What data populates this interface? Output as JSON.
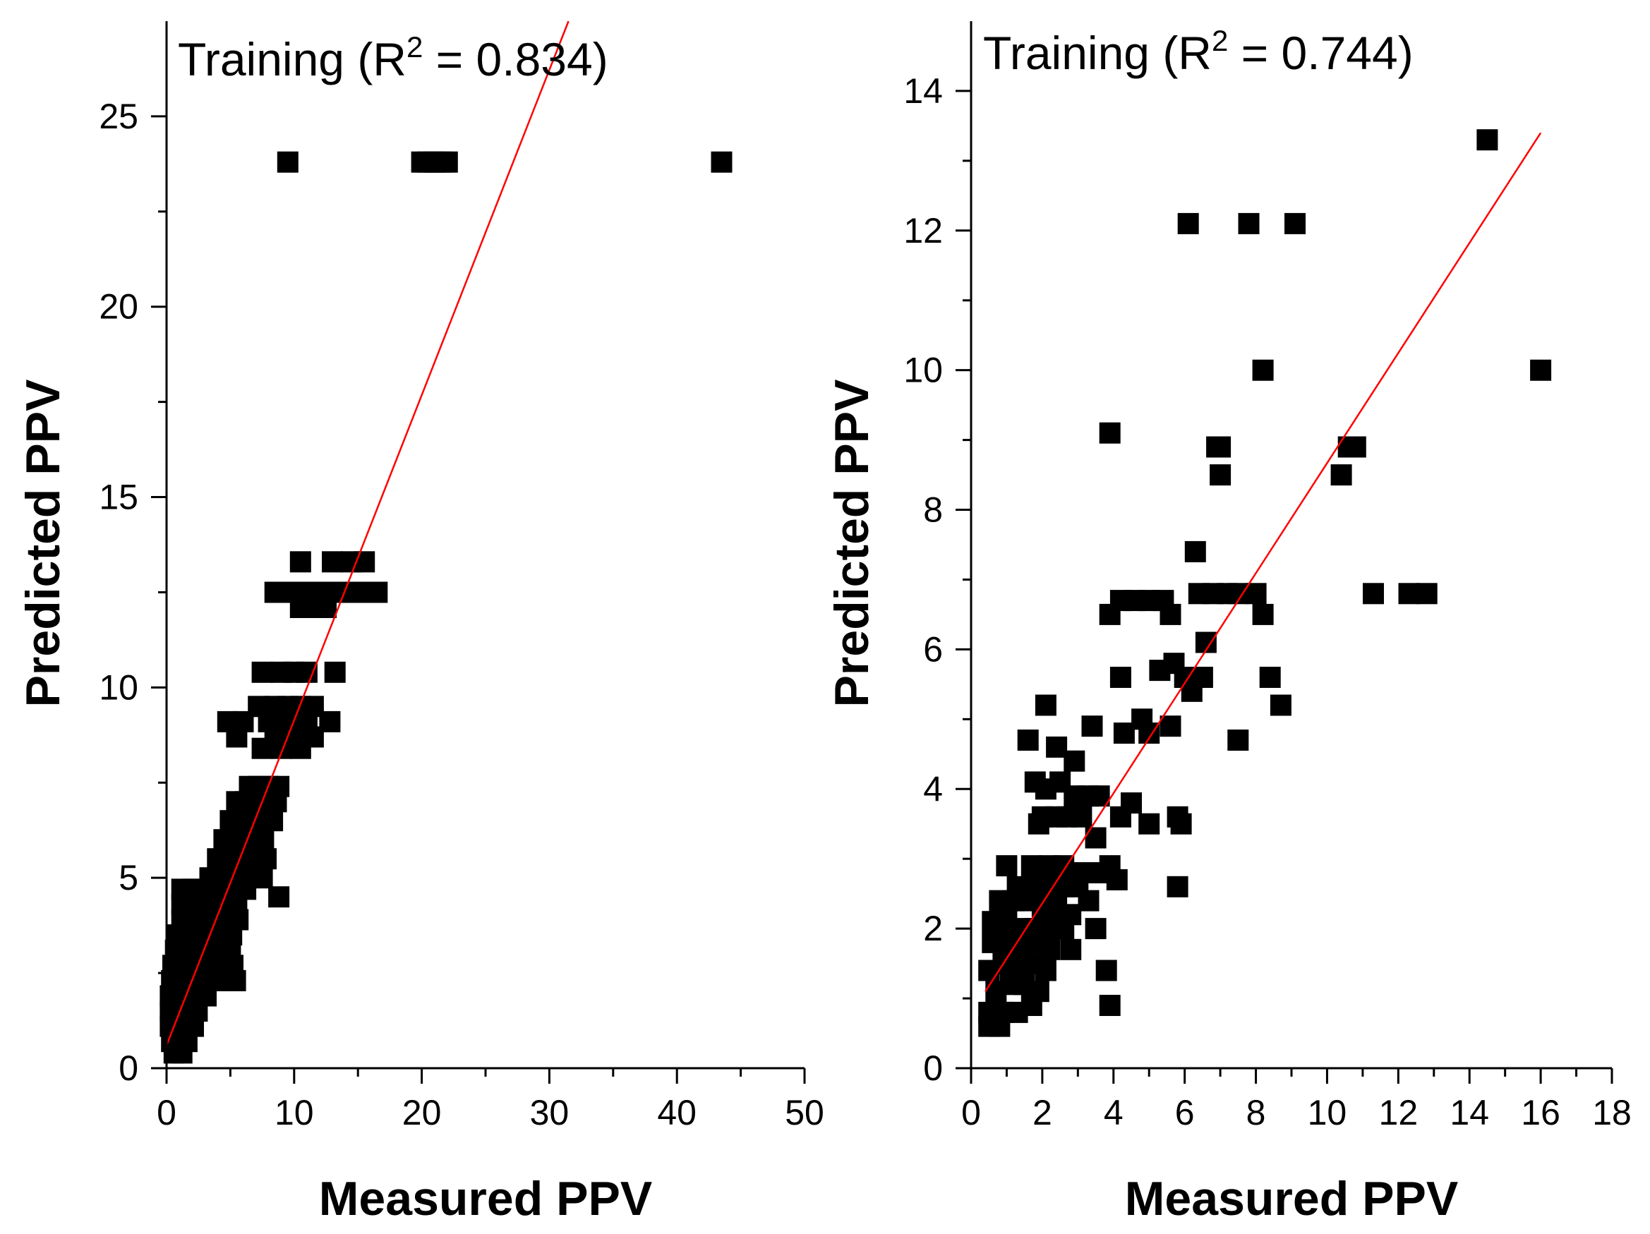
{
  "chart_data": [
    {
      "id": "left",
      "type": "scatter",
      "title": "",
      "annotation": {
        "prefix": "Training (R",
        "sup": "2",
        "suffix": " = 0.834)"
      },
      "xlabel": "Measured PPV",
      "ylabel": "Predicted PPV",
      "xlim": [
        0,
        50
      ],
      "ylim": [
        0,
        27.5
      ],
      "xticks": [
        0,
        10,
        20,
        30,
        40,
        50
      ],
      "yticks": [
        0,
        5,
        10,
        15,
        20,
        25
      ],
      "xminor": [
        5,
        15,
        25,
        35,
        45
      ],
      "yminor": [
        2.5,
        7.5,
        12.5,
        17.5,
        22.5
      ],
      "fit_line": {
        "x": [
          0,
          31.5
        ],
        "y": [
          0.6,
          27.5
        ]
      },
      "marker_color": "#000000",
      "line_color": "#ff0000",
      "points": [
        [
          9.5,
          23.8
        ],
        [
          20.0,
          23.8
        ],
        [
          20.5,
          23.8
        ],
        [
          21.0,
          23.8
        ],
        [
          21.5,
          23.8
        ],
        [
          22.0,
          23.8
        ],
        [
          43.5,
          23.8
        ],
        [
          10.5,
          13.3
        ],
        [
          13.0,
          13.3
        ],
        [
          14.5,
          13.3
        ],
        [
          15.5,
          13.3
        ],
        [
          8.5,
          12.5
        ],
        [
          9.5,
          12.5
        ],
        [
          10.5,
          12.5
        ],
        [
          11.5,
          12.5
        ],
        [
          12.5,
          12.5
        ],
        [
          13.5,
          12.5
        ],
        [
          14.5,
          12.5
        ],
        [
          15.5,
          12.5
        ],
        [
          16.5,
          12.5
        ],
        [
          10.5,
          12.1
        ],
        [
          11.5,
          12.1
        ],
        [
          12.5,
          12.1
        ],
        [
          7.5,
          10.4
        ],
        [
          9.0,
          10.4
        ],
        [
          10.0,
          10.4
        ],
        [
          11.0,
          10.4
        ],
        [
          13.2,
          10.4
        ],
        [
          7.2,
          9.5
        ],
        [
          8.5,
          9.5
        ],
        [
          9.5,
          9.5
        ],
        [
          10.5,
          9.5
        ],
        [
          11.5,
          9.5
        ],
        [
          4.8,
          9.1
        ],
        [
          6.0,
          9.1
        ],
        [
          8.0,
          9.1
        ],
        [
          9.5,
          9.1
        ],
        [
          11.0,
          9.1
        ],
        [
          12.8,
          9.1
        ],
        [
          5.5,
          8.7
        ],
        [
          8.5,
          8.7
        ],
        [
          10.0,
          8.7
        ],
        [
          11.5,
          8.7
        ],
        [
          7.5,
          8.4
        ],
        [
          9.0,
          8.4
        ],
        [
          10.5,
          8.4
        ],
        [
          6.5,
          7.4
        ],
        [
          7.2,
          7.4
        ],
        [
          8.0,
          7.4
        ],
        [
          8.8,
          7.4
        ],
        [
          5.5,
          7.0
        ],
        [
          6.2,
          7.0
        ],
        [
          7.0,
          7.0
        ],
        [
          7.8,
          7.0
        ],
        [
          8.6,
          7.0
        ],
        [
          5.0,
          6.5
        ],
        [
          5.7,
          6.5
        ],
        [
          6.4,
          6.5
        ],
        [
          7.1,
          6.5
        ],
        [
          8.3,
          6.5
        ],
        [
          4.5,
          6.0
        ],
        [
          5.2,
          6.0
        ],
        [
          5.9,
          6.0
        ],
        [
          6.6,
          6.0
        ],
        [
          7.6,
          6.0
        ],
        [
          4.0,
          5.5
        ],
        [
          4.7,
          5.5
        ],
        [
          5.4,
          5.5
        ],
        [
          6.1,
          5.5
        ],
        [
          6.8,
          5.5
        ],
        [
          7.8,
          5.5
        ],
        [
          3.4,
          5.0
        ],
        [
          4.1,
          5.0
        ],
        [
          4.8,
          5.0
        ],
        [
          5.5,
          5.0
        ],
        [
          6.2,
          5.0
        ],
        [
          7.5,
          5.0
        ],
        [
          1.2,
          4.7
        ],
        [
          2.0,
          4.7
        ],
        [
          2.8,
          4.7
        ],
        [
          3.6,
          4.7
        ],
        [
          4.4,
          4.7
        ],
        [
          5.2,
          4.7
        ],
        [
          6.2,
          4.7
        ],
        [
          1.2,
          4.3
        ],
        [
          1.9,
          4.3
        ],
        [
          2.6,
          4.3
        ],
        [
          3.3,
          4.3
        ],
        [
          4.0,
          4.3
        ],
        [
          4.7,
          4.3
        ],
        [
          5.5,
          4.3
        ],
        [
          8.8,
          4.5
        ],
        [
          1.2,
          3.9
        ],
        [
          1.9,
          3.9
        ],
        [
          2.6,
          3.9
        ],
        [
          3.3,
          3.9
        ],
        [
          4.0,
          3.9
        ],
        [
          4.7,
          3.9
        ],
        [
          5.6,
          3.9
        ],
        [
          0.9,
          3.5
        ],
        [
          1.6,
          3.5
        ],
        [
          2.3,
          3.5
        ],
        [
          3.0,
          3.5
        ],
        [
          3.7,
          3.5
        ],
        [
          4.4,
          3.5
        ],
        [
          5.1,
          3.5
        ],
        [
          0.7,
          3.1
        ],
        [
          1.4,
          3.1
        ],
        [
          2.1,
          3.1
        ],
        [
          2.8,
          3.1
        ],
        [
          3.5,
          3.1
        ],
        [
          4.2,
          3.1
        ],
        [
          5.0,
          3.1
        ],
        [
          0.5,
          2.7
        ],
        [
          1.2,
          2.7
        ],
        [
          1.9,
          2.7
        ],
        [
          2.6,
          2.7
        ],
        [
          3.3,
          2.7
        ],
        [
          4.0,
          2.7
        ],
        [
          5.2,
          2.7
        ],
        [
          0.4,
          2.3
        ],
        [
          1.1,
          2.3
        ],
        [
          1.8,
          2.3
        ],
        [
          2.5,
          2.3
        ],
        [
          3.2,
          2.3
        ],
        [
          3.9,
          2.3
        ],
        [
          5.4,
          2.3
        ],
        [
          0.3,
          1.9
        ],
        [
          1.0,
          1.9
        ],
        [
          1.7,
          1.9
        ],
        [
          2.4,
          1.9
        ],
        [
          3.1,
          1.9
        ],
        [
          0.3,
          1.5
        ],
        [
          1.0,
          1.5
        ],
        [
          1.7,
          1.5
        ],
        [
          2.4,
          1.5
        ],
        [
          0.3,
          1.1
        ],
        [
          0.9,
          1.1
        ],
        [
          1.5,
          1.1
        ],
        [
          2.1,
          1.1
        ],
        [
          0.4,
          0.7
        ],
        [
          1.0,
          0.7
        ],
        [
          1.6,
          0.7
        ],
        [
          0.6,
          0.4
        ],
        [
          1.2,
          0.4
        ]
      ]
    },
    {
      "id": "right",
      "type": "scatter",
      "title": "",
      "annotation": {
        "prefix": "Training (R",
        "sup": "2",
        "suffix": " = 0.744)"
      },
      "xlabel": "Measured PPV",
      "ylabel": "Predicted PPV",
      "xlim": [
        0,
        18
      ],
      "ylim": [
        0,
        15
      ],
      "xticks": [
        0,
        2,
        4,
        6,
        8,
        10,
        12,
        14,
        16,
        18
      ],
      "yticks": [
        0,
        2,
        4,
        6,
        8,
        10,
        12,
        14
      ],
      "xminor": [
        1,
        3,
        5,
        7,
        9,
        11,
        13,
        15,
        17
      ],
      "yminor": [
        1,
        3,
        5,
        7,
        9,
        11,
        13
      ],
      "fit_line": {
        "x": [
          0.4,
          16.0
        ],
        "y": [
          1.1,
          13.4
        ]
      },
      "marker_color": "#000000",
      "line_color": "#ff0000",
      "points": [
        [
          14.5,
          13.3
        ],
        [
          6.1,
          12.1
        ],
        [
          7.8,
          12.1
        ],
        [
          9.1,
          12.1
        ],
        [
          8.2,
          10.0
        ],
        [
          16.0,
          10.0
        ],
        [
          3.9,
          9.1
        ],
        [
          6.9,
          8.9
        ],
        [
          7.0,
          8.9
        ],
        [
          10.6,
          8.9
        ],
        [
          10.8,
          8.9
        ],
        [
          7.0,
          8.5
        ],
        [
          10.4,
          8.5
        ],
        [
          6.3,
          7.4
        ],
        [
          11.3,
          6.8
        ],
        [
          12.3,
          6.8
        ],
        [
          12.8,
          6.8
        ],
        [
          4.2,
          6.7
        ],
        [
          4.6,
          6.7
        ],
        [
          5.0,
          6.7
        ],
        [
          5.4,
          6.7
        ],
        [
          6.4,
          6.8
        ],
        [
          6.8,
          6.8
        ],
        [
          7.2,
          6.8
        ],
        [
          7.5,
          6.8
        ],
        [
          8.0,
          6.8
        ],
        [
          3.9,
          6.5
        ],
        [
          5.6,
          6.5
        ],
        [
          8.2,
          6.5
        ],
        [
          6.6,
          6.1
        ],
        [
          4.2,
          5.6
        ],
        [
          5.3,
          5.7
        ],
        [
          5.7,
          5.8
        ],
        [
          6.0,
          5.6
        ],
        [
          6.2,
          5.4
        ],
        [
          6.5,
          5.6
        ],
        [
          8.4,
          5.6
        ],
        [
          8.7,
          5.2
        ],
        [
          2.1,
          5.2
        ],
        [
          4.3,
          4.8
        ],
        [
          4.8,
          5.0
        ],
        [
          5.0,
          4.8
        ],
        [
          5.6,
          4.9
        ],
        [
          3.4,
          4.9
        ],
        [
          1.6,
          4.7
        ],
        [
          7.5,
          4.7
        ],
        [
          2.4,
          4.6
        ],
        [
          2.9,
          4.4
        ],
        [
          1.8,
          4.1
        ],
        [
          2.1,
          4.0
        ],
        [
          2.5,
          4.1
        ],
        [
          2.9,
          3.9
        ],
        [
          3.3,
          3.9
        ],
        [
          3.6,
          3.9
        ],
        [
          2.0,
          3.6
        ],
        [
          2.4,
          3.6
        ],
        [
          2.7,
          3.6
        ],
        [
          3.1,
          3.6
        ],
        [
          4.2,
          3.6
        ],
        [
          5.8,
          3.6
        ],
        [
          4.5,
          3.8
        ],
        [
          1.9,
          3.5
        ],
        [
          5.0,
          3.5
        ],
        [
          5.9,
          3.5
        ],
        [
          3.5,
          3.3
        ],
        [
          1.0,
          2.9
        ],
        [
          1.7,
          2.9
        ],
        [
          2.2,
          2.9
        ],
        [
          2.6,
          2.9
        ],
        [
          3.0,
          2.8
        ],
        [
          3.5,
          2.8
        ],
        [
          3.9,
          2.9
        ],
        [
          4.1,
          2.7
        ],
        [
          3.8,
          2.8
        ],
        [
          1.3,
          2.6
        ],
        [
          1.7,
          2.6
        ],
        [
          2.2,
          2.6
        ],
        [
          2.6,
          2.6
        ],
        [
          3.0,
          2.6
        ],
        [
          5.8,
          2.6
        ],
        [
          0.8,
          2.4
        ],
        [
          1.2,
          2.4
        ],
        [
          1.6,
          2.4
        ],
        [
          2.0,
          2.3
        ],
        [
          2.4,
          2.3
        ],
        [
          2.8,
          2.2
        ],
        [
          3.3,
          2.4
        ],
        [
          0.6,
          2.1
        ],
        [
          1.0,
          2.1
        ],
        [
          1.4,
          2.0
        ],
        [
          1.8,
          2.0
        ],
        [
          2.2,
          2.0
        ],
        [
          2.6,
          2.0
        ],
        [
          3.5,
          2.0
        ],
        [
          0.6,
          1.8
        ],
        [
          1.0,
          1.8
        ],
        [
          1.4,
          1.8
        ],
        [
          1.8,
          1.8
        ],
        [
          2.2,
          1.7
        ],
        [
          2.8,
          1.7
        ],
        [
          0.5,
          1.4
        ],
        [
          0.9,
          1.5
        ],
        [
          1.3,
          1.5
        ],
        [
          1.7,
          1.5
        ],
        [
          2.1,
          1.4
        ],
        [
          3.8,
          1.4
        ],
        [
          0.7,
          1.1
        ],
        [
          1.1,
          1.2
        ],
        [
          1.5,
          1.2
        ],
        [
          1.9,
          1.1
        ],
        [
          0.5,
          0.8
        ],
        [
          0.9,
          0.8
        ],
        [
          1.3,
          0.8
        ],
        [
          1.7,
          0.9
        ],
        [
          3.9,
          0.9
        ],
        [
          0.5,
          0.6
        ],
        [
          0.8,
          0.6
        ]
      ]
    }
  ]
}
